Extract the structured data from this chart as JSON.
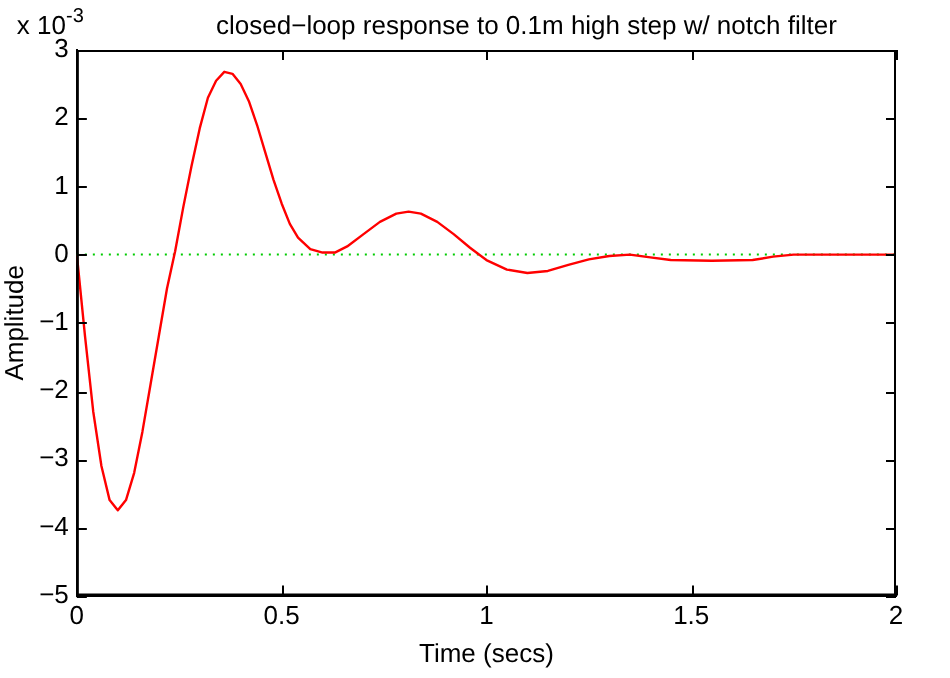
{
  "chart_data": {
    "type": "line",
    "title": "closed−loop response to 0.1m high step w/ notch filter",
    "xlabel": "Time (secs)",
    "ylabel": "Amplitude",
    "annotations": [
      "x 10$^{-3}$"
    ],
    "x": [
      0,
      0.02,
      0.04,
      0.06,
      0.08,
      0.1,
      0.12,
      0.14,
      0.16,
      0.18,
      0.2,
      0.22,
      0.24,
      0.26,
      0.28,
      0.3,
      0.32,
      0.34,
      0.36,
      0.38,
      0.4,
      0.42,
      0.44,
      0.46,
      0.48,
      0.5,
      0.52,
      0.54,
      0.57,
      0.6,
      0.63,
      0.66,
      0.7,
      0.74,
      0.78,
      0.81,
      0.84,
      0.88,
      0.92,
      0.96,
      1.0,
      1.05,
      1.1,
      1.15,
      1.2,
      1.25,
      1.3,
      1.35,
      1.4,
      1.45,
      1.55,
      1.65,
      1.7,
      1.75,
      2.0
    ],
    "series": [
      {
        "color": "#ff0000",
        "values": [
          0,
          -1.2,
          -2.3,
          -3.1,
          -3.6,
          -3.75,
          -3.6,
          -3.2,
          -2.6,
          -1.9,
          -1.2,
          -0.5,
          0.05,
          0.7,
          1.3,
          1.85,
          2.3,
          2.55,
          2.68,
          2.65,
          2.5,
          2.25,
          1.9,
          1.5,
          1.1,
          0.75,
          0.45,
          0.25,
          0.08,
          0.03,
          0.03,
          0.12,
          0.3,
          0.48,
          0.6,
          0.63,
          0.6,
          0.48,
          0.3,
          0.1,
          -0.08,
          -0.22,
          -0.27,
          -0.24,
          -0.15,
          -0.07,
          -0.02,
          0,
          -0.04,
          -0.08,
          -0.09,
          -0.08,
          -0.03,
          0,
          0
        ]
      }
    ],
    "xlim": [
      0,
      2
    ],
    "xticks": [
      0,
      0.5,
      1,
      1.5,
      2
    ],
    "ylim": [
      -5,
      3
    ],
    "yticks": [
      -5,
      -4,
      -3,
      -2,
      -1,
      0,
      1,
      2,
      3
    ],
    "ref_lines": [
      {
        "axis": "y",
        "value": 0,
        "color": "#00cc00",
        "line_style": "dotted"
      }
    ],
    "grid": false,
    "legend": false,
    "marker": "none",
    "line_style": "solid"
  }
}
